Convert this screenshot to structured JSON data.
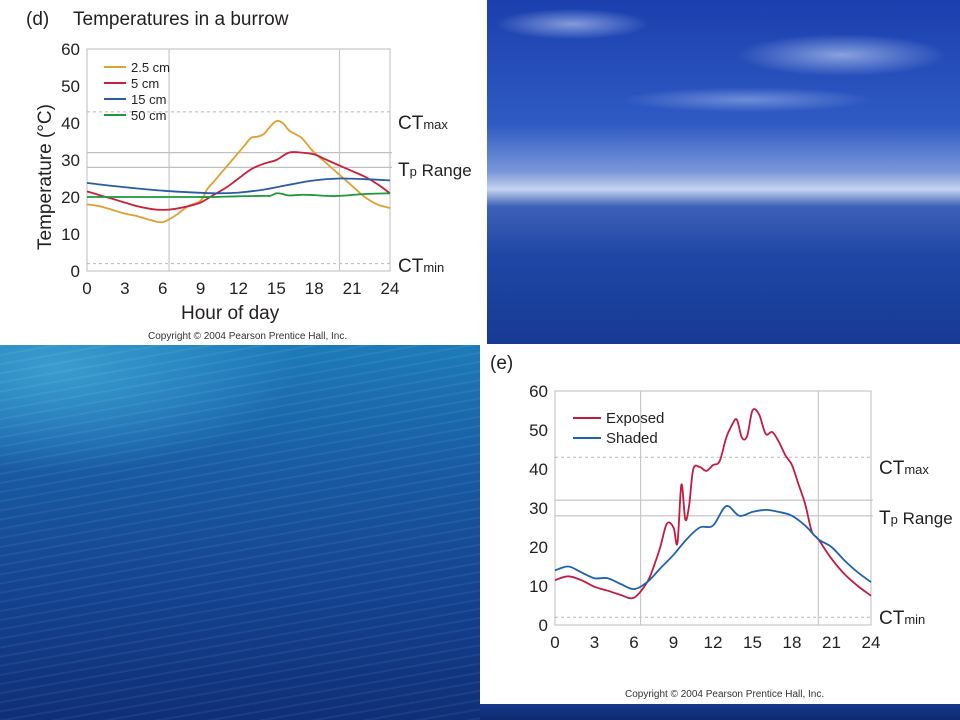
{
  "panel_d": {
    "letter": "(d)",
    "title": "Temperatures in a burrow",
    "copyright": "Copyright © 2004 Pearson Prentice Hall, Inc.",
    "ct_max": {
      "main": "CT",
      "sub": "max"
    },
    "tp_range": {
      "main": "T",
      "sub": "p",
      "rest": " Range"
    },
    "ct_min": {
      "main": "CT",
      "sub": "min"
    }
  },
  "panel_e": {
    "letter": "(e)",
    "copyright": "Copyright © 2004 Pearson Prentice Hall, Inc.",
    "ct_max": {
      "main": "CT",
      "sub": "max"
    },
    "tp_range": {
      "main": "T",
      "sub": "p",
      "rest": " Range"
    },
    "ct_min": {
      "main": "CT",
      "sub": "min"
    }
  },
  "chart_data": [
    {
      "type": "line",
      "title": "Temperatures in a burrow",
      "xlabel": "Hour of day",
      "ylabel": "Temperature (°C)",
      "xlim": [
        0,
        24
      ],
      "ylim": [
        0,
        60
      ],
      "xticks": [
        0,
        3,
        6,
        9,
        12,
        15,
        18,
        21,
        24
      ],
      "yticks": [
        0,
        10,
        20,
        30,
        40,
        50,
        60
      ],
      "legend_position": "top-left",
      "reference_lines": {
        "ct_max": 43,
        "tp_range": [
          28,
          32
        ],
        "ct_min": 2,
        "vertical": [
          6.5,
          20
        ]
      },
      "series": [
        {
          "name": "2.5 cm",
          "color": "#e0a030",
          "x": [
            0,
            1,
            2,
            3,
            4,
            5,
            6,
            7,
            8,
            9,
            9.5,
            10,
            10.5,
            11,
            11.5,
            12,
            12.5,
            13,
            13.5,
            14,
            14.5,
            15,
            15.5,
            16,
            16.5,
            17,
            17.5,
            18,
            19,
            20,
            21,
            22,
            23,
            24
          ],
          "y": [
            18,
            17.5,
            16.5,
            15.5,
            14.8,
            13.8,
            13.2,
            15,
            17.5,
            19,
            22,
            24,
            26,
            28,
            30,
            32,
            34,
            36,
            36.3,
            37,
            39,
            40.5,
            40,
            38,
            37,
            36,
            34,
            32,
            29,
            26,
            23,
            20,
            18,
            17
          ]
        },
        {
          "name": "5 cm",
          "color": "#c8203a",
          "x": [
            0,
            1,
            2,
            3,
            4,
            5,
            6,
            7,
            8,
            9,
            10,
            11,
            12,
            13,
            14,
            15,
            16,
            17,
            18,
            19,
            20,
            21,
            22,
            23,
            24
          ],
          "y": [
            21.5,
            20.5,
            19.5,
            18.5,
            17.5,
            16.8,
            16.5,
            16.8,
            17.5,
            18.5,
            20.5,
            22.5,
            25,
            27.5,
            29,
            30,
            32,
            32,
            31.5,
            30,
            28.5,
            27,
            25.5,
            23.5,
            21
          ]
        },
        {
          "name": "15 cm",
          "color": "#2a5aa8",
          "x": [
            0,
            2,
            4,
            6,
            8,
            10,
            12,
            14,
            16,
            18,
            20,
            22,
            24
          ],
          "y": [
            23.8,
            23,
            22.3,
            21.7,
            21.3,
            21,
            21.2,
            22,
            23.3,
            24.5,
            25,
            24.8,
            24.5
          ]
        },
        {
          "name": "50 cm",
          "color": "#1a9a3a",
          "x": [
            0,
            2,
            4,
            6,
            8,
            10,
            12,
            14,
            14.5,
            15,
            15.5,
            16,
            17,
            18,
            19,
            20,
            22,
            24
          ],
          "y": [
            20,
            20,
            20,
            20,
            20,
            20,
            20.2,
            20.3,
            20.3,
            21,
            20.8,
            20.4,
            20.6,
            20.5,
            20.3,
            20.3,
            20.8,
            21
          ]
        }
      ]
    },
    {
      "type": "line",
      "xlim": [
        0,
        24
      ],
      "ylim": [
        0,
        60
      ],
      "xticks": [
        0,
        3,
        6,
        9,
        12,
        15,
        18,
        21,
        24
      ],
      "yticks": [
        0,
        10,
        20,
        30,
        40,
        50,
        60
      ],
      "legend_position": "top-left",
      "reference_lines": {
        "ct_max": 43,
        "tp_range": [
          28,
          32
        ],
        "ct_min": 2,
        "vertical": [
          6.5,
          20
        ]
      },
      "series": [
        {
          "name": "Exposed",
          "color": "#c41a40",
          "x": [
            0,
            1,
            2,
            3,
            4,
            5,
            6,
            7,
            7.5,
            8,
            8.5,
            9,
            9.3,
            9.6,
            9.9,
            10.2,
            10.5,
            11,
            11.5,
            12,
            12.5,
            13,
            13.4,
            13.8,
            14.2,
            14.6,
            15,
            15.5,
            16,
            16.5,
            17,
            17.5,
            18,
            18.5,
            19,
            19.5,
            20,
            21,
            22,
            23,
            24
          ],
          "y": [
            11.5,
            12.5,
            11.5,
            9.8,
            8.8,
            7.7,
            7,
            11,
            15,
            20,
            26,
            25,
            21,
            36,
            27,
            31,
            40,
            40.5,
            39.5,
            41,
            42,
            48,
            51,
            52.7,
            48,
            48.5,
            55,
            54,
            49,
            49.5,
            47,
            43.5,
            41,
            36,
            31,
            24,
            22,
            17,
            13,
            10,
            7.5
          ]
        },
        {
          "name": "Shaded",
          "color": "#1e63b0",
          "x": [
            0,
            1,
            2,
            3,
            4,
            5,
            6,
            7,
            8,
            9,
            10,
            11,
            12,
            13,
            14,
            15,
            16,
            17,
            18,
            19,
            20,
            21,
            22,
            23,
            24
          ],
          "y": [
            14,
            15,
            13.5,
            12,
            12,
            10.5,
            9.2,
            11,
            14.5,
            18,
            22,
            25,
            25.5,
            30.5,
            28,
            29,
            29.5,
            29,
            28,
            25.5,
            22,
            20,
            16.5,
            13.5,
            11
          ]
        }
      ]
    }
  ]
}
